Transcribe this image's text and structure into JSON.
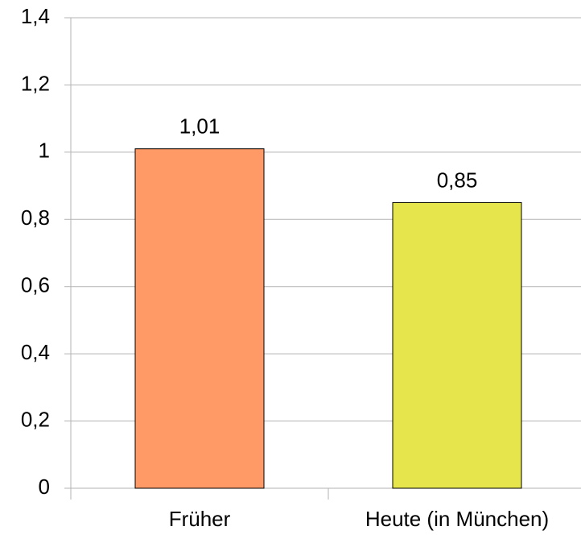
{
  "chart_data": {
    "type": "bar",
    "categories": [
      "Früher",
      "Heute (in München)"
    ],
    "values": [
      1.01,
      0.85
    ],
    "value_labels": [
      "1,01",
      "0,85"
    ],
    "colors": [
      "#ff9966",
      "#e6e64c"
    ],
    "ylim": [
      0,
      1.4
    ],
    "yticks": [
      0,
      {
        "value": 0.2,
        "label": "0,2"
      },
      {
        "value": 0.4,
        "label": "0,4"
      },
      {
        "value": 0.6,
        "label": "0,6"
      },
      {
        "value": 0.8,
        "label": "0,8"
      },
      1,
      {
        "value": 1.2,
        "label": "1,2"
      },
      {
        "value": 1.4,
        "label": "1,4"
      }
    ],
    "grid": true
  }
}
